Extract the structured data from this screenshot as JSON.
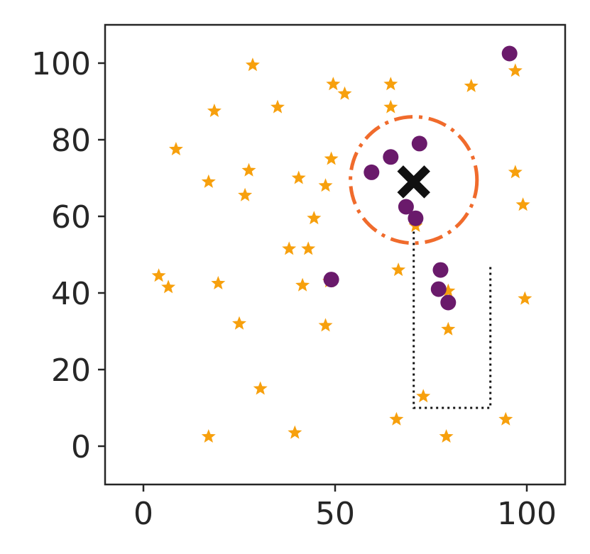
{
  "chart_data": {
    "type": "scatter",
    "title": "",
    "xlabel": "",
    "ylabel": "",
    "xlim": [
      -10,
      110
    ],
    "ylim": [
      -10,
      110
    ],
    "xticks": [
      0,
      50,
      100
    ],
    "yticks": [
      0,
      20,
      40,
      60,
      80,
      100
    ],
    "grid": false,
    "legend": "none",
    "series": [
      {
        "marker": "star",
        "color": "#f7a00d",
        "points": [
          [
            28.5,
            99.5
          ],
          [
            49.5,
            94.5
          ],
          [
            52.5,
            92
          ],
          [
            64.5,
            94.5
          ],
          [
            85.5,
            94
          ],
          [
            97,
            98
          ],
          [
            18.5,
            87.5
          ],
          [
            35,
            88.5
          ],
          [
            64.5,
            88.5
          ],
          [
            8.5,
            77.5
          ],
          [
            49,
            75
          ],
          [
            27.5,
            72
          ],
          [
            17,
            69
          ],
          [
            40.5,
            70
          ],
          [
            47.5,
            68
          ],
          [
            26.5,
            65.5
          ],
          [
            97,
            71.5
          ],
          [
            99,
            63
          ],
          [
            44.5,
            59.5
          ],
          [
            71,
            57.5
          ],
          [
            38,
            51.5
          ],
          [
            43,
            51.5
          ],
          [
            66.5,
            46
          ],
          [
            4,
            44.5
          ],
          [
            6.5,
            41.5
          ],
          [
            19.5,
            42.5
          ],
          [
            41.5,
            42
          ],
          [
            48.5,
            43
          ],
          [
            79.5,
            40.5
          ],
          [
            99.5,
            38.5
          ],
          [
            25,
            32
          ],
          [
            47.5,
            31.5
          ],
          [
            79.5,
            30.5
          ],
          [
            30.5,
            15
          ],
          [
            73,
            13
          ],
          [
            66,
            7
          ],
          [
            94.5,
            7
          ],
          [
            17,
            2.5
          ],
          [
            39.5,
            3.5
          ],
          [
            79,
            2.5
          ]
        ]
      },
      {
        "marker": "circle",
        "color": "#6a1a6b",
        "points": [
          [
            95.5,
            102.5
          ],
          [
            72,
            79
          ],
          [
            64.5,
            75.5
          ],
          [
            59.5,
            71.5
          ],
          [
            68.5,
            62.5
          ],
          [
            71,
            59.5
          ],
          [
            49,
            43.5
          ],
          [
            77.5,
            46
          ],
          [
            77,
            41
          ],
          [
            79.5,
            37.5
          ]
        ]
      }
    ],
    "centroid": {
      "marker": "x",
      "color": "#111111",
      "x": 70.5,
      "y": 69
    },
    "circle": {
      "cx": 70.5,
      "cy": 69.5,
      "r": 16.5,
      "color": "#f06b2c",
      "style": "dashdot"
    },
    "box": {
      "x0": 70.5,
      "x1": 90.5,
      "y0": 10,
      "y1": 57.5,
      "color": "#111111",
      "style": "dotted"
    }
  }
}
